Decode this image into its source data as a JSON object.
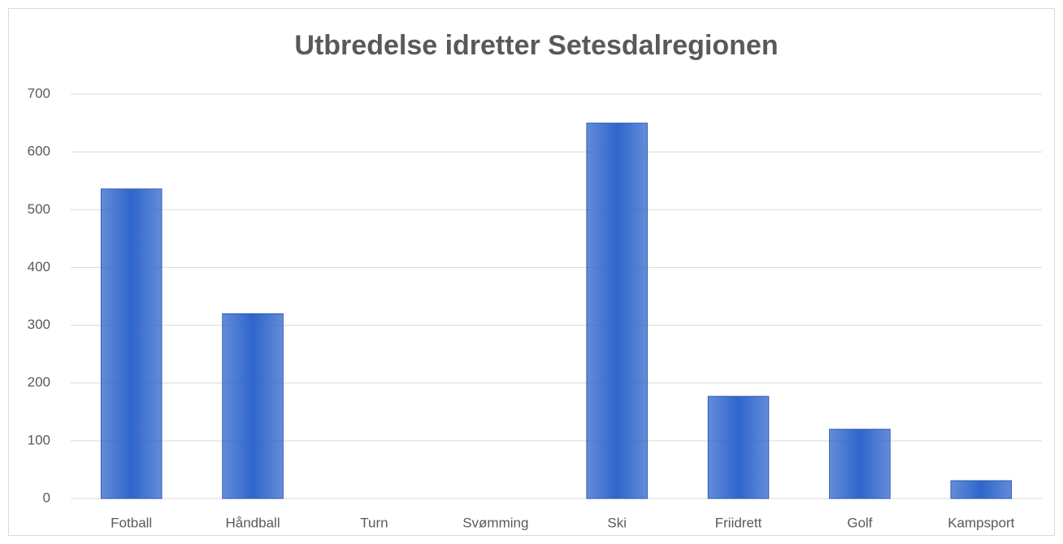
{
  "chart_data": {
    "type": "bar",
    "title": "Utbredelse idretter Setesdalregionen",
    "categories": [
      "Fotball",
      "Håndball",
      "Turn",
      "Svømming",
      "Ski",
      "Friidrett",
      "Golf",
      "Kampsport"
    ],
    "values": [
      536,
      320,
      0,
      0,
      650,
      177,
      120,
      31
    ],
    "color": "#2f66cc",
    "ylim": [
      0,
      700
    ],
    "yticks": [
      0,
      100,
      200,
      300,
      400,
      500,
      600,
      700
    ],
    "grid": true
  }
}
